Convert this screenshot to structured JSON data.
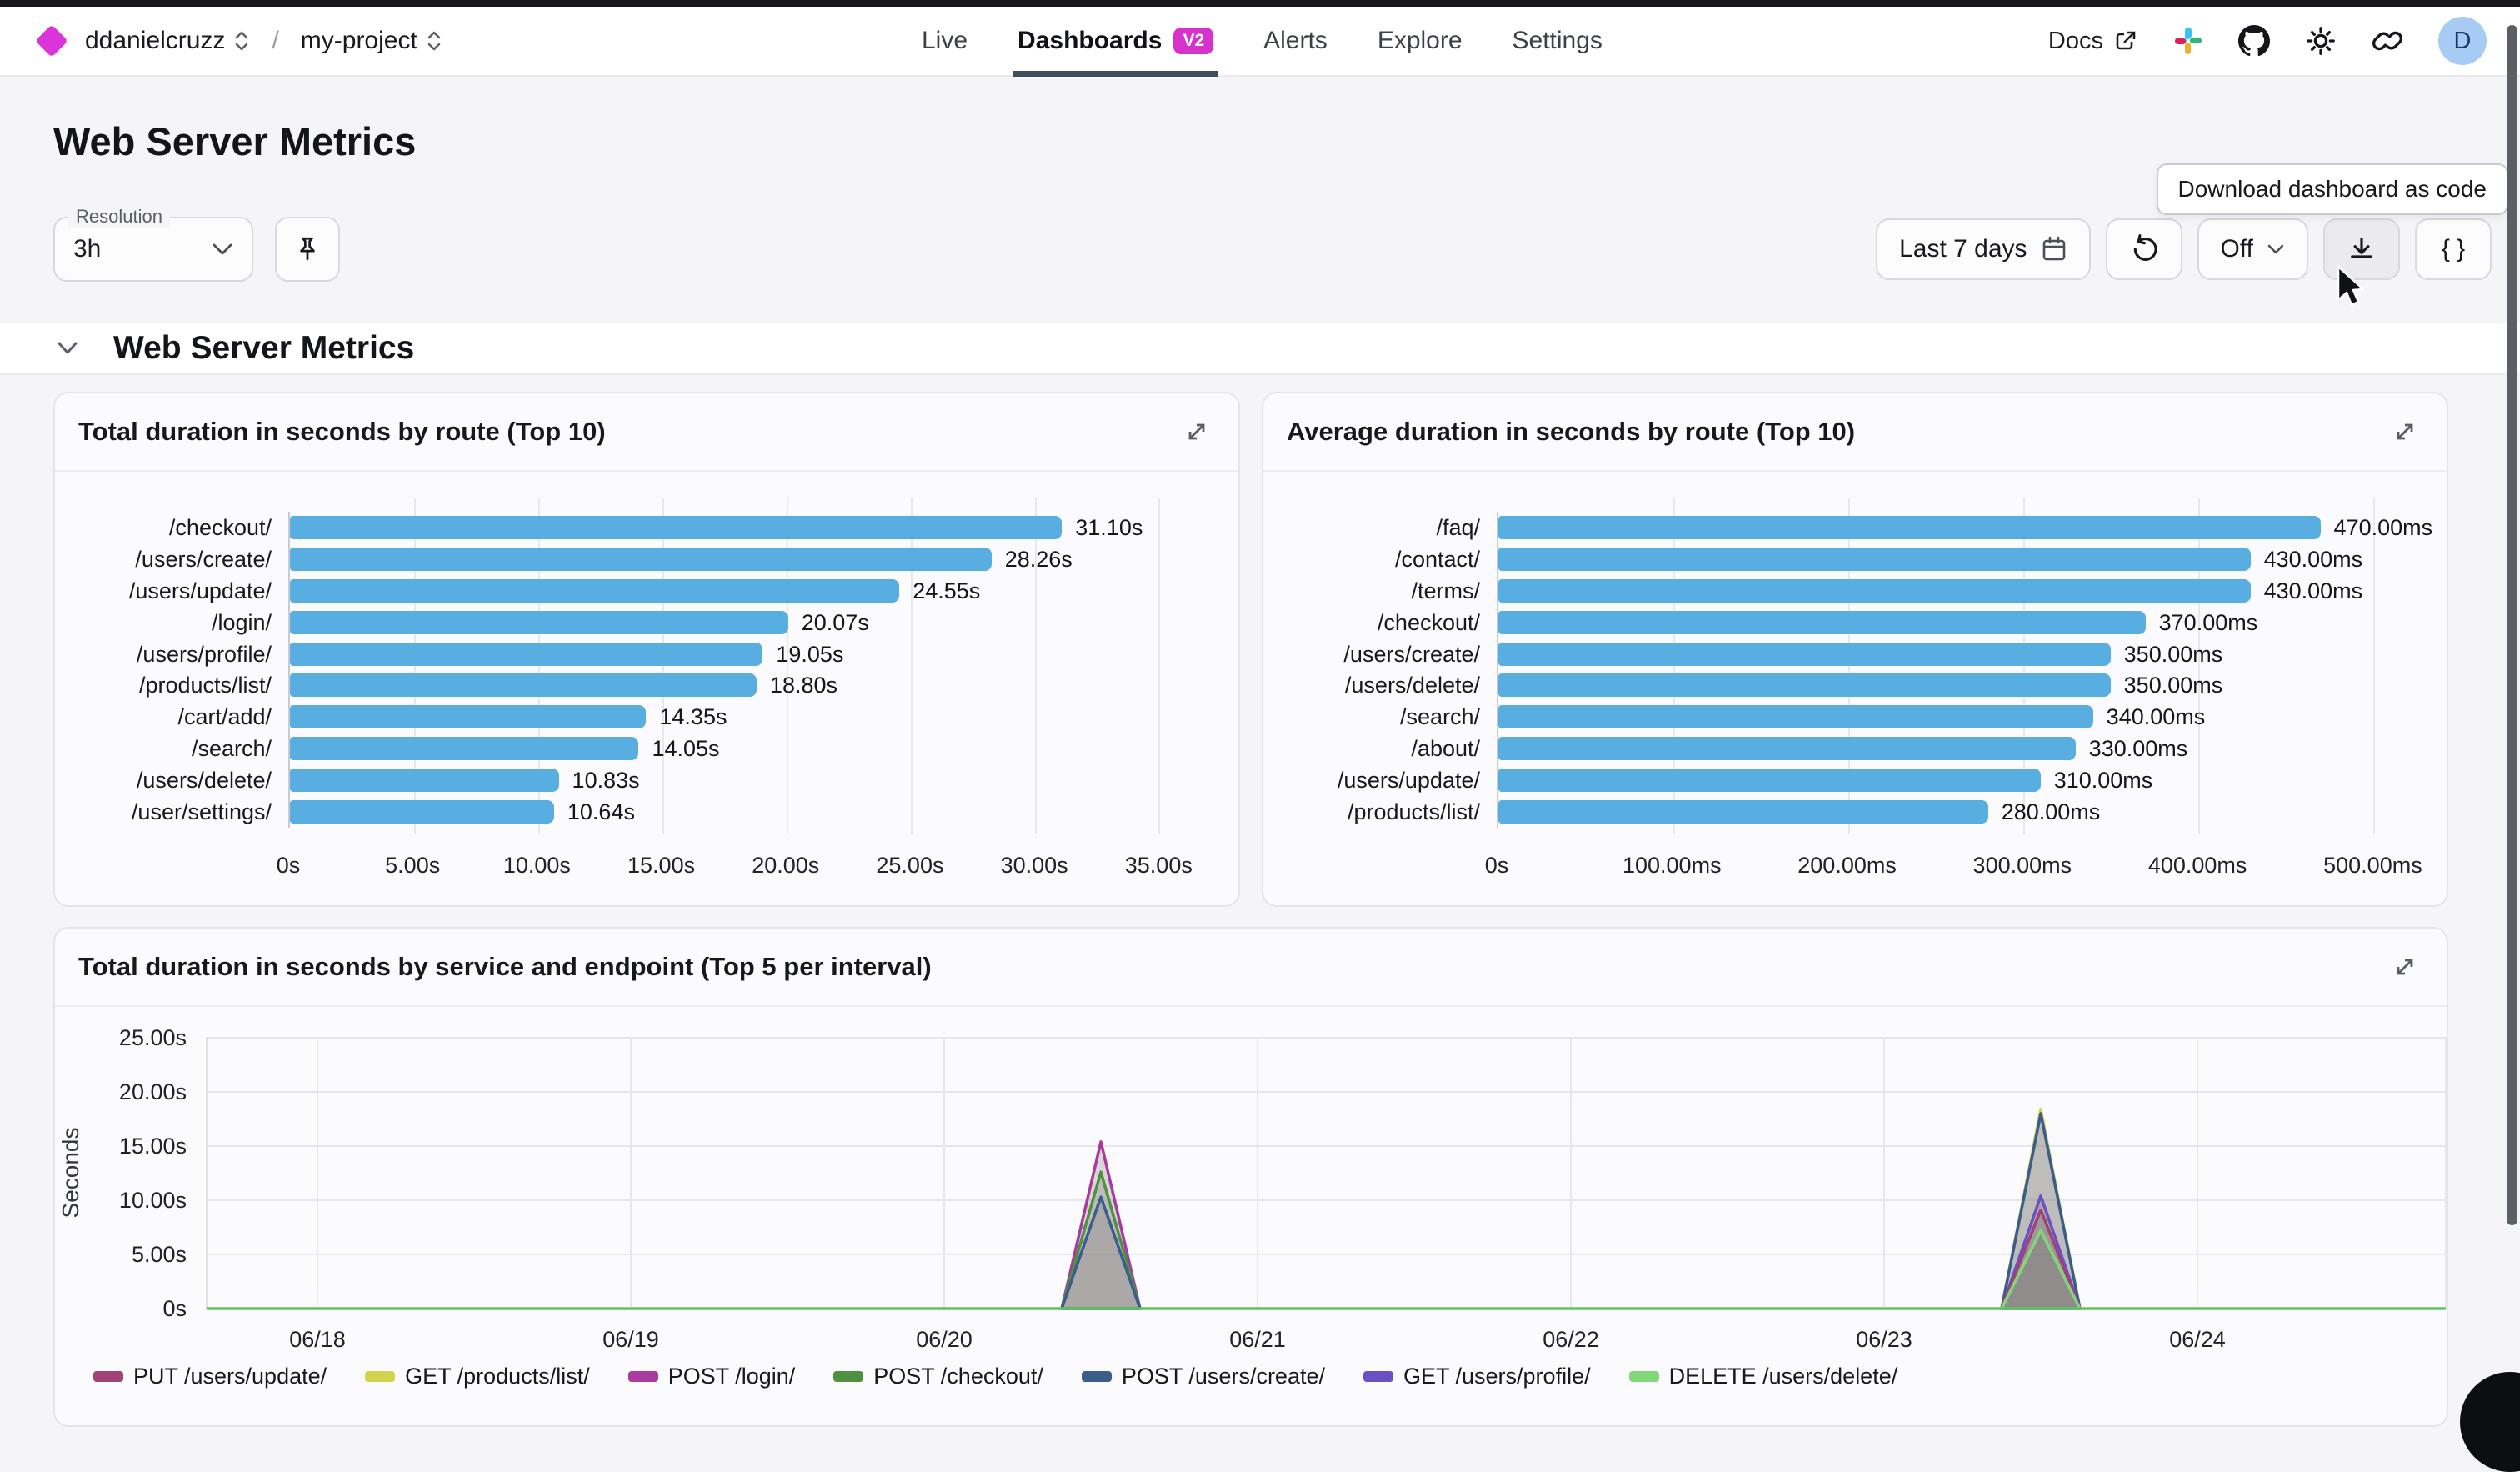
{
  "nav": {
    "breadcrumb": {
      "org": "ddanielcruzz",
      "separator": "/",
      "project": "my-project"
    },
    "tabs": [
      {
        "label": "Live"
      },
      {
        "label": "Dashboards",
        "badge": "V2"
      },
      {
        "label": "Alerts"
      },
      {
        "label": "Explore"
      },
      {
        "label": "Settings"
      }
    ],
    "docs_label": "Docs",
    "avatar_initial": "D"
  },
  "page": {
    "title": "Web Server Metrics"
  },
  "controls": {
    "resolution_label": "Resolution",
    "resolution_value": "3h",
    "time_range_label": "Last 7 days",
    "refresh_interval_label": "Off",
    "braces_label": "{ }",
    "tooltip": "Download dashboard as code"
  },
  "section": {
    "title": "Web Server Metrics"
  },
  "chart_data": [
    {
      "type": "bar",
      "orientation": "horizontal",
      "title": "Total duration in seconds by route (Top 10)",
      "categories": [
        "/checkout/",
        "/users/create/",
        "/users/update/",
        "/login/",
        "/users/profile/",
        "/products/list/",
        "/cart/add/",
        "/search/",
        "/users/delete/",
        "/user/settings/"
      ],
      "values": [
        31.1,
        28.26,
        24.55,
        20.07,
        19.05,
        18.8,
        14.35,
        14.05,
        10.83,
        10.64
      ],
      "value_labels": [
        "31.10s",
        "28.26s",
        "24.55s",
        "20.07s",
        "19.05s",
        "18.80s",
        "14.35s",
        "14.05s",
        "10.83s",
        "10.64s"
      ],
      "xticks": {
        "values": [
          0,
          5,
          10,
          15,
          20,
          25,
          30,
          35
        ],
        "labels": [
          "0s",
          "5.00s",
          "10.00s",
          "15.00s",
          "20.00s",
          "25.00s",
          "30.00s",
          "35.00s"
        ]
      },
      "xlim": [
        0,
        37
      ],
      "bar_color": "#58ade1",
      "grid": true
    },
    {
      "type": "bar",
      "orientation": "horizontal",
      "title": "Average duration in seconds by route (Top 10)",
      "categories": [
        "/faq/",
        "/contact/",
        "/terms/",
        "/checkout/",
        "/users/create/",
        "/users/delete/",
        "/search/",
        "/about/",
        "/users/update/",
        "/products/list/"
      ],
      "values": [
        470,
        430,
        430,
        370,
        350,
        350,
        340,
        330,
        310,
        280
      ],
      "value_labels": [
        "470.00ms",
        "430.00ms",
        "430.00ms",
        "370.00ms",
        "350.00ms",
        "350.00ms",
        "340.00ms",
        "330.00ms",
        "310.00ms",
        "280.00ms"
      ],
      "xticks": {
        "values": [
          0,
          100,
          200,
          300,
          400,
          500
        ],
        "labels": [
          "0s",
          "100.00ms",
          "200.00ms",
          "300.00ms",
          "400.00ms",
          "500.00ms"
        ]
      },
      "xlim": [
        0,
        525
      ],
      "bar_color": "#58ade1",
      "grid": true
    },
    {
      "type": "area",
      "title": "Total duration in seconds by service and endpoint (Top 5 per interval)",
      "ylabel": "Seconds",
      "yticks": {
        "values": [
          0,
          5,
          10,
          15,
          20,
          25
        ],
        "labels": [
          "0s",
          "5.00s",
          "10.00s",
          "15.00s",
          "20.00s",
          "25.00s"
        ]
      },
      "ylim": [
        0,
        26
      ],
      "xticks": [
        "06/18",
        "06/19",
        "06/20",
        "06/21",
        "06/22",
        "06/23",
        "06/24"
      ],
      "baseline_value": 0,
      "spikes": [
        {
          "x_day_offset": 2.5,
          "half_width_days": 0.125,
          "layers": [
            {
              "series": "POST /login/",
              "peak": 15.4
            },
            {
              "series": "POST /checkout/",
              "peak": 12.6
            },
            {
              "series": "POST /users/create/",
              "peak": 10.3
            }
          ]
        },
        {
          "x_day_offset": 5.5,
          "half_width_days": 0.125,
          "layers": [
            {
              "series": "GET /products/list/",
              "peak": 18.4
            },
            {
              "series": "POST /users/create/",
              "peak": 18.0
            },
            {
              "series": "GET /users/profile/",
              "peak": 10.4
            },
            {
              "series": "PUT /users/update/",
              "peak": 9.1
            },
            {
              "series": "DELETE /users/delete/",
              "peak": 7.2
            }
          ]
        }
      ],
      "legend": [
        {
          "label": "PUT /users/update/",
          "color": "#a04273"
        },
        {
          "label": "GET /products/list/",
          "color": "#d2d24d"
        },
        {
          "label": "POST /login/",
          "color": "#a93a9f"
        },
        {
          "label": "POST /checkout/",
          "color": "#4e9140"
        },
        {
          "label": "POST /users/create/",
          "color": "#3a5e8c"
        },
        {
          "label": "GET /users/profile/",
          "color": "#6a4fc5"
        },
        {
          "label": "DELETE /users/delete/",
          "color": "#82d878"
        }
      ]
    }
  ]
}
